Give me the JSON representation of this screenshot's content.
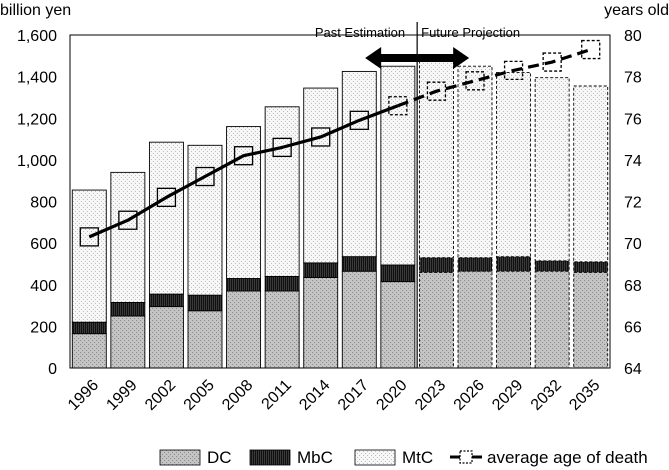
{
  "chart_data": {
    "type": "bar",
    "subtype": "stacked-bar-with-line",
    "categories": [
      "1996",
      "1999",
      "2002",
      "2005",
      "2008",
      "2011",
      "2014",
      "2017",
      "2020",
      "2023",
      "2026",
      "2029",
      "2032",
      "2035"
    ],
    "series": [
      {
        "name": "DC",
        "values": [
          165,
          250,
          295,
          275,
          370,
          370,
          435,
          465,
          415,
          460,
          465,
          465,
          465,
          460
        ]
      },
      {
        "name": "MbC",
        "values": [
          55,
          65,
          60,
          75,
          60,
          70,
          70,
          70,
          80,
          70,
          65,
          70,
          50,
          50
        ]
      },
      {
        "name": "MtC",
        "values": [
          635,
          625,
          730,
          720,
          730,
          815,
          840,
          890,
          955,
          950,
          920,
          885,
          880,
          845
        ]
      }
    ],
    "line_series": {
      "name": "average age of death",
      "values": [
        70.3,
        71.1,
        72.2,
        73.2,
        74.2,
        74.6,
        75.1,
        75.9,
        76.6,
        77.3,
        77.8,
        78.3,
        78.7,
        79.3
      ]
    },
    "projection_start_index": 9,
    "title": "",
    "left_unit": "billion yen",
    "right_unit": "years old",
    "ylim_left": [
      0,
      1600
    ],
    "yticks_left": [
      "0",
      "200",
      "400",
      "600",
      "800",
      "1,000",
      "1,200",
      "1,400",
      "1,600"
    ],
    "ylim_right": [
      64,
      80
    ],
    "yticks_right": [
      "64",
      "66",
      "68",
      "70",
      "72",
      "74",
      "76",
      "78",
      "80"
    ],
    "annotations": {
      "past": "Past Estimation",
      "future": "Future Projection"
    },
    "legend": [
      "DC",
      "MbC",
      "MtC",
      "average age of death"
    ],
    "legend_position": "bottom",
    "grid": false,
    "colors": {
      "dc": "#b9b9b9",
      "mbc": "#3f3f3f",
      "mtc": "#f0f0f0",
      "line": "#000000"
    }
  }
}
